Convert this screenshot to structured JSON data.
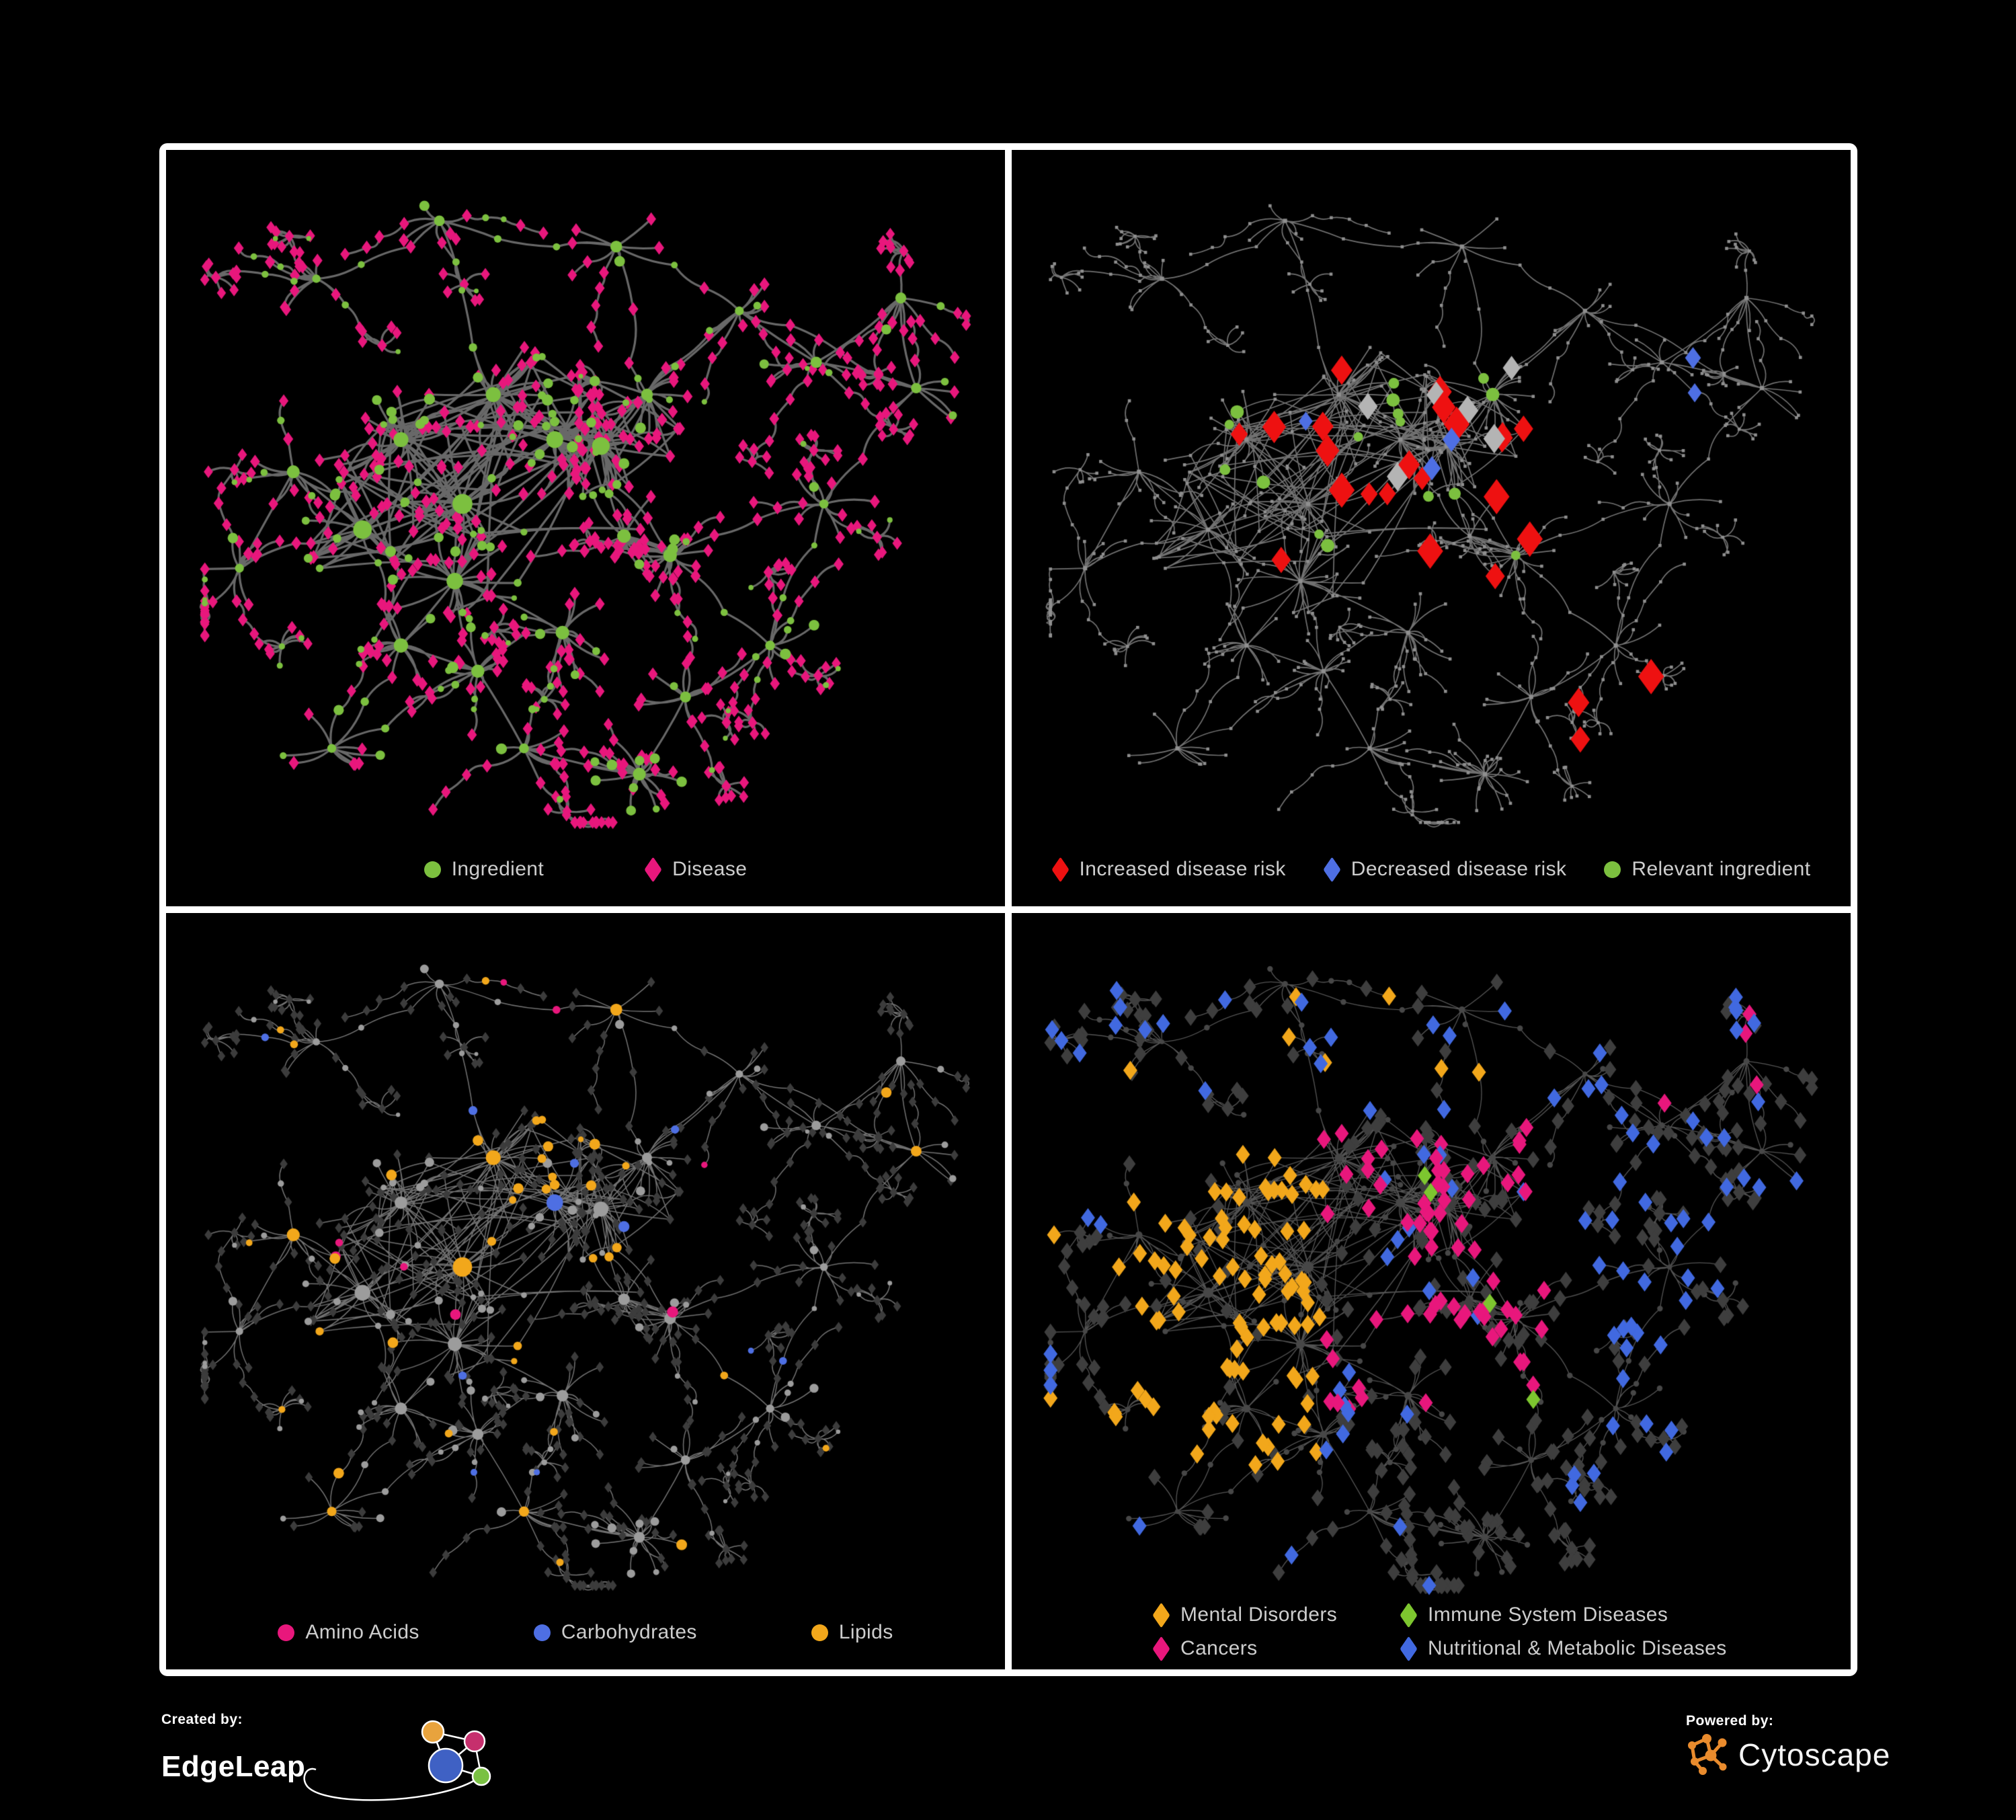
{
  "page": {
    "background": "#000000",
    "frame_color": "#ffffff"
  },
  "panels": [
    {
      "name": "ingredient-disease-network",
      "edge_color": "#6e6e6e",
      "legend": [
        {
          "label": "Ingredient",
          "shape": "circle",
          "color": "#7cc03f"
        },
        {
          "label": "Disease",
          "shape": "diamond",
          "color": "#e8177c"
        }
      ]
    },
    {
      "name": "disease-risk-network",
      "edge_color": "#7d7d7d",
      "default_node_color": "#8f8f8f",
      "neutral_diamond_color": "#b4b4b4",
      "legend": [
        {
          "label": "Increased disease risk",
          "shape": "diamond",
          "color": "#ee1111"
        },
        {
          "label": "Decreased disease risk",
          "shape": "diamond",
          "color": "#4e6fe3"
        },
        {
          "label": "Relevant ingredient",
          "shape": "circle",
          "color": "#7cc03f"
        }
      ]
    },
    {
      "name": "nutrient-class-network",
      "edge_color": "#8f8f8f",
      "ingredient_default_color": "#9c9c9c",
      "disease_default_color": "#3c3c3c",
      "legend": [
        {
          "label": "Amino Acids",
          "shape": "circle",
          "color": "#e8177c"
        },
        {
          "label": "Carbohydrates",
          "shape": "circle",
          "color": "#4e6fe3"
        },
        {
          "label": "Lipids",
          "shape": "circle",
          "color": "#f2a71b"
        }
      ]
    },
    {
      "name": "disease-class-network",
      "edge_color": "#a6a6a6",
      "default_diamond_color": "#3e3e3e",
      "default_circle_color": "#474747",
      "legend": [
        {
          "label": "Mental Disorders",
          "shape": "diamond",
          "color": "#f2a71b"
        },
        {
          "label": "Immune System Diseases",
          "shape": "diamond",
          "color": "#7dc62f"
        },
        {
          "label": "Cancers",
          "shape": "diamond",
          "color": "#e8177c"
        },
        {
          "label": "Nutritional & Metabolic Diseases",
          "shape": "diamond",
          "color": "#4169e0"
        }
      ]
    }
  ],
  "footer": {
    "created_by": {
      "label": "Created by:",
      "brand": "EdgeLeap",
      "node_colors": [
        "#e8a33d",
        "#c62f6d",
        "#3f61c4",
        "#7ac143"
      ],
      "line_color": "#ffffff"
    },
    "powered_by": {
      "label": "Powered by:",
      "brand": "Cytoscape",
      "brand_color": "#e98b2d"
    }
  },
  "chart_data": {
    "type": "network",
    "shared_layout": true,
    "description": "One ingredient-disease association network rendered four times with different colorings: (1) node type, (2) disease-risk direction for a selected ingredient set, (3) ingredient nutrient class, (4) disease class.",
    "node_shapes": {
      "circle": "Ingredient",
      "diamond": "Disease"
    },
    "approx_counts": {
      "increased_disease_risk": 33,
      "decreased_disease_risk": 6,
      "neutral_risk": 8,
      "relevant_ingredients": 26,
      "amino_acids": 16,
      "carbohydrates": 14,
      "lipids": 58,
      "mental_disorders": 100,
      "immune_system_diseases": 9,
      "cancers": 72,
      "nutritional_metabolic_diseases": 95
    },
    "seed": 1337,
    "anchors": [
      {
        "x": 0.26,
        "y": 0.4,
        "k": "c"
      },
      {
        "x": 0.38,
        "y": 0.33,
        "k": "c"
      },
      {
        "x": 0.34,
        "y": 0.5,
        "k": "c"
      },
      {
        "x": 0.21,
        "y": 0.54,
        "k": "c"
      },
      {
        "x": 0.46,
        "y": 0.4,
        "k": "c"
      },
      {
        "x": 0.33,
        "y": 0.62,
        "k": "c"
      },
      {
        "x": 0.52,
        "y": 0.41,
        "k": "c"
      },
      {
        "x": 0.55,
        "y": 0.55,
        "k": "m"
      },
      {
        "x": 0.61,
        "y": 0.58,
        "k": "m"
      },
      {
        "x": 0.47,
        "y": 0.7,
        "k": "m"
      },
      {
        "x": 0.26,
        "y": 0.72,
        "k": "m"
      },
      {
        "x": 0.58,
        "y": 0.33,
        "k": "m"
      },
      {
        "x": 0.36,
        "y": 0.76,
        "k": "m"
      },
      {
        "x": 0.12,
        "y": 0.45,
        "k": "m"
      },
      {
        "x": 0.7,
        "y": 0.2,
        "k": "s"
      },
      {
        "x": 0.8,
        "y": 0.28,
        "k": "s"
      },
      {
        "x": 0.93,
        "y": 0.32,
        "k": "s"
      },
      {
        "x": 0.54,
        "y": 0.1,
        "k": "s"
      },
      {
        "x": 0.31,
        "y": 0.06,
        "k": "s"
      },
      {
        "x": 0.15,
        "y": 0.15,
        "k": "s"
      },
      {
        "x": 0.05,
        "y": 0.6,
        "k": "s"
      },
      {
        "x": 0.17,
        "y": 0.88,
        "k": "s"
      },
      {
        "x": 0.42,
        "y": 0.88,
        "k": "s"
      },
      {
        "x": 0.81,
        "y": 0.5,
        "k": "s"
      },
      {
        "x": 0.74,
        "y": 0.72,
        "k": "s"
      },
      {
        "x": 0.91,
        "y": 0.18,
        "k": "s"
      },
      {
        "x": 0.63,
        "y": 0.8,
        "k": "s"
      },
      {
        "x": 0.57,
        "y": 0.92,
        "k": "bs"
      }
    ]
  }
}
